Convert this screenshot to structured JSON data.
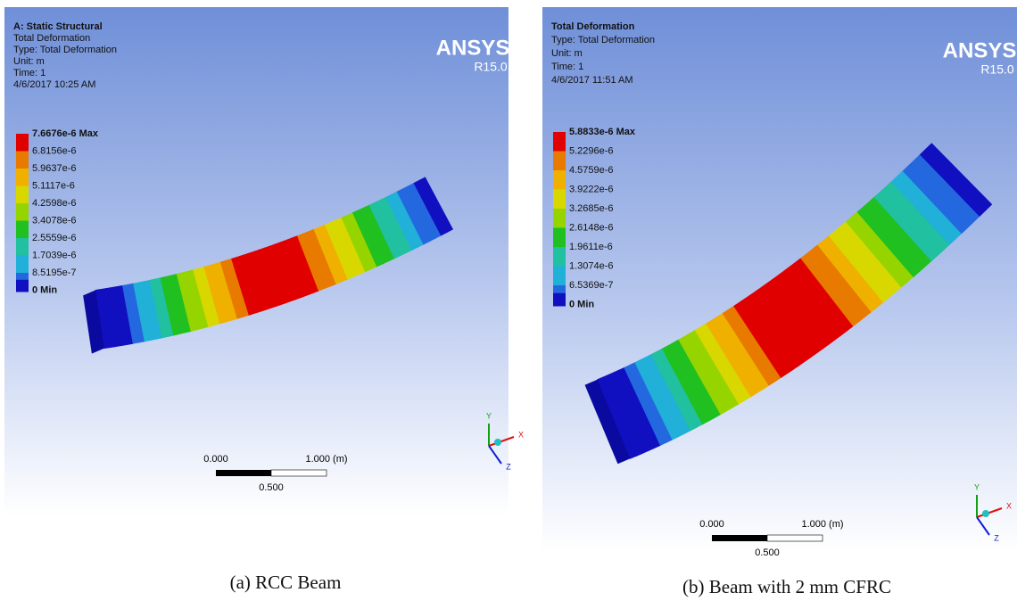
{
  "panels": [
    {
      "header": [
        "A: Static Structural",
        "Total Deformation",
        "Type: Total Deformation",
        "Unit: m",
        "Time: 1",
        "4/6/2017 10:25 AM"
      ],
      "legend": [
        "7.6676e-6 Max",
        "6.8156e-6",
        "5.9637e-6",
        "5.1117e-6",
        "4.2598e-6",
        "3.4078e-6",
        "2.5559e-6",
        "1.7039e-6",
        "8.5195e-7",
        "0 Min"
      ],
      "logo": {
        "name": "ANSYS",
        "version": "R15.0"
      },
      "scale": {
        "start": "0.000",
        "end": "1.000 (m)",
        "mid": "0.500"
      },
      "axes": [
        "Y",
        "X",
        "Z"
      ],
      "caption": "(a) RCC Beam"
    },
    {
      "header": [
        "Total Deformation",
        "Type: Total Deformation",
        "Unit: m",
        "Time: 1",
        "4/6/2017 11:51 AM"
      ],
      "legend": [
        "5.8833e-6 Max",
        "5.2296e-6",
        "4.5759e-6",
        "3.9222e-6",
        "3.2685e-6",
        "2.6148e-6",
        "1.9611e-6",
        "1.3074e-6",
        "6.5369e-7",
        "0 Min"
      ],
      "logo": {
        "name": "ANSYS",
        "version": "R15.0"
      },
      "scale": {
        "start": "0.000",
        "end": "1.000 (m)",
        "mid": "0.500"
      },
      "axes": [
        "Y",
        "X",
        "Z"
      ],
      "caption": "(b) Beam with 2 mm CFRC"
    }
  ]
}
